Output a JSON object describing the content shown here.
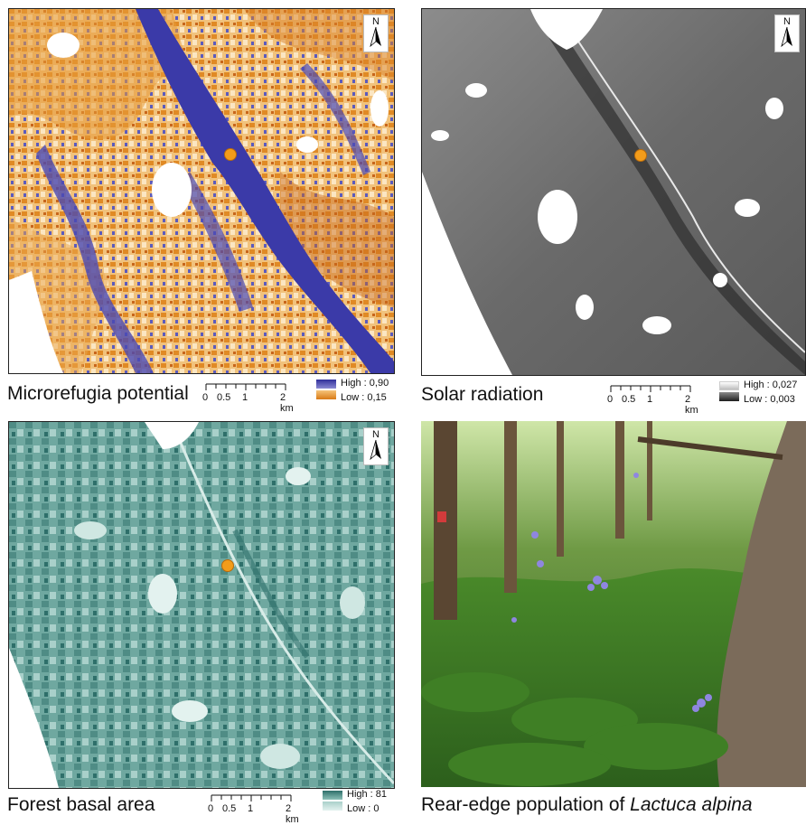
{
  "panels": {
    "microrefugia": {
      "caption": "Microrefugia potential",
      "legend_high": "High : 0,90",
      "legend_low": "Low : 0,15",
      "colors": {
        "high": "#3b3aa8",
        "low": "#e08a25",
        "mid": "#f6dca8"
      }
    },
    "solar": {
      "caption": "Solar radiation",
      "legend_high": "High : 0,027",
      "legend_low": "Low : 0,003",
      "colors": {
        "high": "#ffffff",
        "low": "#222222"
      }
    },
    "basal": {
      "caption": "Forest basal area",
      "legend_high": "High : 81",
      "legend_low": "Low : 0",
      "colors": {
        "high": "#2e6f6a",
        "low": "#e3f2ef"
      }
    },
    "photo": {
      "caption_prefix": "Rear-edge population of ",
      "caption_species": "Lactuca alpina"
    }
  },
  "scalebar": {
    "labels": [
      "0",
      "0.5",
      "1",
      "2 km"
    ]
  },
  "north_label": "N",
  "site_marker_color": "#f39c1a"
}
